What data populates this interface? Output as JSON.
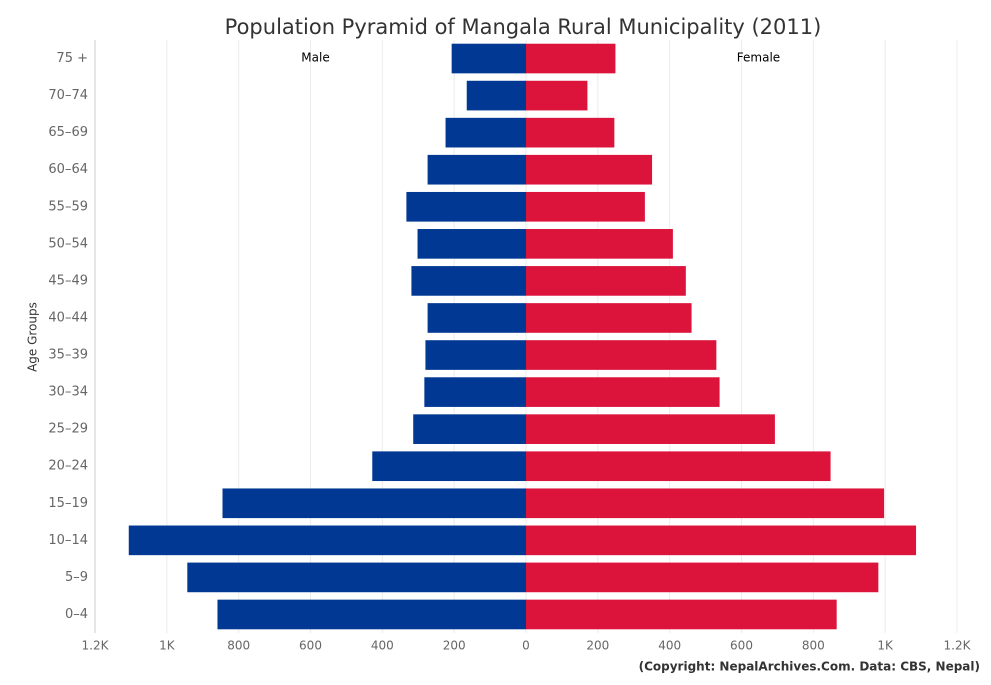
{
  "chart_data": {
    "type": "pyramid",
    "title": "Population Pyramid of Mangala Rural Municipality (2011)",
    "y_axis_label": "Age Groups",
    "credit": "(Copyright: NepalArchives.Com. Data: CBS, Nepal)",
    "categories": [
      "0–4",
      "5–9",
      "10–14",
      "15–19",
      "20–24",
      "25–29",
      "30–34",
      "35–39",
      "40–44",
      "45–49",
      "50–54",
      "55–59",
      "60–64",
      "65–69",
      "70–74",
      "75 +"
    ],
    "series": [
      {
        "name": "Male",
        "color": "#003893",
        "side": "left",
        "values": [
          859,
          943,
          1106,
          845,
          428,
          314,
          283,
          280,
          274,
          319,
          302,
          333,
          274,
          224,
          165,
          207
        ]
      },
      {
        "name": "Female",
        "color": "#dc143c",
        "side": "right",
        "values": [
          865,
          981,
          1086,
          997,
          848,
          693,
          539,
          530,
          461,
          445,
          409,
          331,
          351,
          246,
          171,
          249
        ]
      }
    ],
    "xlim": [
      -1200,
      1200
    ],
    "xticks": [
      {
        "value": -1200,
        "label": "1.2K"
      },
      {
        "value": -1000,
        "label": "1K"
      },
      {
        "value": -800,
        "label": "800"
      },
      {
        "value": -600,
        "label": "600"
      },
      {
        "value": -400,
        "label": "400"
      },
      {
        "value": -200,
        "label": "200"
      },
      0,
      200,
      400,
      600,
      800,
      {
        "value": 1000,
        "label": "1K"
      },
      {
        "value": 1200,
        "label": "1.2K"
      }
    ],
    "grid": true
  }
}
